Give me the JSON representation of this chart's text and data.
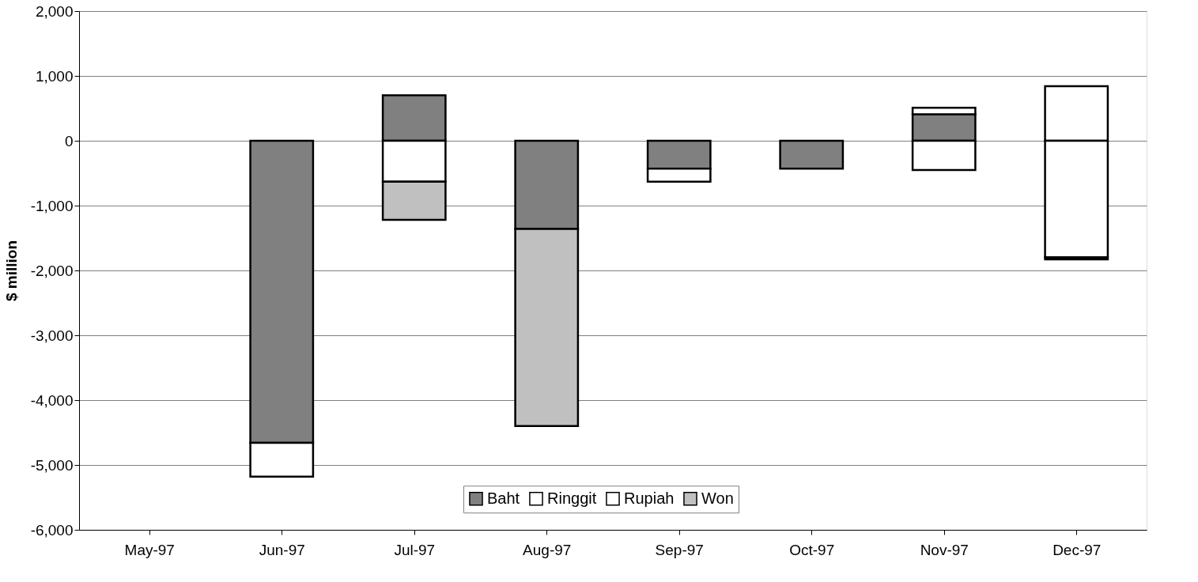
{
  "chart_data": {
    "type": "bar",
    "stacked": true,
    "ylabel": "$ million",
    "categories": [
      "May-97",
      "Jun-97",
      "Jul-97",
      "Aug-97",
      "Sep-97",
      "Oct-97",
      "Nov-97",
      "Dec-97"
    ],
    "series": [
      {
        "name": "Baht",
        "color": "#808080",
        "values": [
          null,
          -4660,
          700,
          -1360,
          -430,
          -430,
          410,
          null
        ]
      },
      {
        "name": "Ringgit",
        "color": "#ffffff",
        "values": [
          null,
          -520,
          -630,
          null,
          -200,
          null,
          100,
          840
        ]
      },
      {
        "name": "Rupiah",
        "color": "#ffffff",
        "values": [
          null,
          null,
          null,
          null,
          null,
          null,
          -450,
          -1800
        ]
      },
      {
        "name": "Won",
        "color": "#c0c0c0",
        "values": [
          null,
          null,
          -590,
          -3040,
          null,
          null,
          null,
          -30
        ]
      }
    ],
    "ylim": [
      -6000,
      2000
    ],
    "yticks": [
      {
        "value": -6000,
        "label": "-6,000"
      },
      {
        "value": -5000,
        "label": "-5,000"
      },
      {
        "value": -4000,
        "label": "-4,000"
      },
      {
        "value": -3000,
        "label": "-3,000"
      },
      {
        "value": -2000,
        "label": "-2,000"
      },
      {
        "value": -1000,
        "label": "-1,000"
      },
      {
        "value": 0,
        "label": "0"
      },
      {
        "value": 1000,
        "label": "1,000"
      },
      {
        "value": 2000,
        "label": "2,000"
      }
    ],
    "grid": "y",
    "legend": "bottom"
  }
}
